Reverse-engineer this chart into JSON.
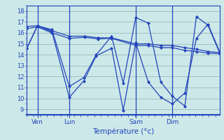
{
  "background_color": "#cce8e8",
  "line_color": "#2244bb",
  "grid_color": "#99bbbb",
  "axis_color": "#2244bb",
  "xlabel": "Température (°c)",
  "xlabel_color": "#2244bb",
  "tick_label_color": "#2244bb",
  "ylim": [
    8.5,
    18.5
  ],
  "yticks": [
    9,
    10,
    11,
    12,
    13,
    14,
    15,
    16,
    17,
    18
  ],
  "xlim": [
    0,
    1
  ],
  "day_labels": [
    "Ven",
    "Lun",
    "Sam",
    "Dim"
  ],
  "day_positions": [
    0.055,
    0.22,
    0.565,
    0.755
  ],
  "series": [
    {
      "x": [
        0.0,
        0.055,
        0.13,
        0.22,
        0.3,
        0.37,
        0.44,
        0.565,
        0.63,
        0.695,
        0.755,
        0.82,
        0.88,
        0.94,
        1.0
      ],
      "y": [
        16.6,
        16.65,
        16.2,
        15.7,
        15.7,
        15.55,
        15.55,
        15.0,
        15.0,
        14.85,
        14.85,
        14.65,
        14.5,
        14.3,
        14.2
      ]
    },
    {
      "x": [
        0.0,
        0.055,
        0.13,
        0.22,
        0.3,
        0.37,
        0.44,
        0.565,
        0.63,
        0.695,
        0.755,
        0.82,
        0.88,
        0.94,
        1.0
      ],
      "y": [
        16.4,
        16.55,
        16.0,
        15.5,
        15.6,
        15.45,
        15.5,
        14.85,
        14.85,
        14.65,
        14.65,
        14.4,
        14.3,
        14.15,
        14.1
      ]
    },
    {
      "x": [
        0.0,
        0.055,
        0.13,
        0.22,
        0.295,
        0.36,
        0.44,
        0.5,
        0.565,
        0.63,
        0.695,
        0.755,
        0.82,
        0.88,
        0.94,
        1.0
      ],
      "y": [
        14.6,
        16.65,
        16.3,
        11.1,
        11.9,
        14.0,
        15.7,
        11.4,
        17.4,
        16.9,
        11.5,
        10.2,
        9.3,
        17.5,
        16.7,
        14.2
      ]
    },
    {
      "x": [
        0.0,
        0.055,
        0.13,
        0.22,
        0.295,
        0.36,
        0.44,
        0.5,
        0.565,
        0.63,
        0.695,
        0.755,
        0.82,
        0.88,
        0.94,
        1.0
      ],
      "y": [
        14.6,
        16.65,
        16.1,
        10.1,
        11.6,
        13.9,
        14.6,
        8.9,
        15.1,
        11.5,
        10.1,
        9.5,
        10.5,
        15.5,
        16.8,
        14.3
      ]
    }
  ]
}
